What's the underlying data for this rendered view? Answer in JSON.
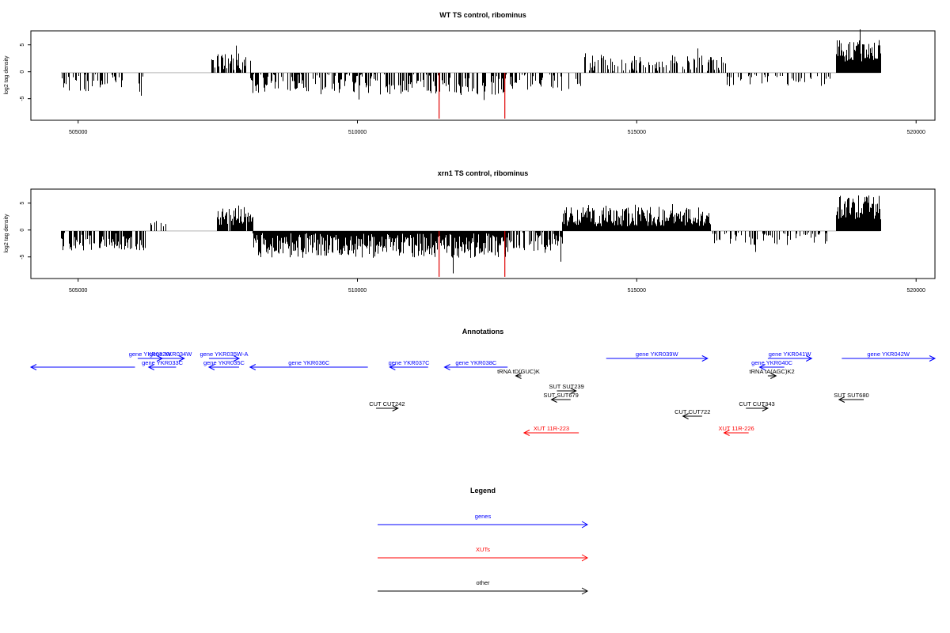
{
  "chart_data": [
    {
      "type": "bar",
      "title": "WT TS control, ribominus",
      "xlabel": "",
      "ylabel": "log2 tag density",
      "xlim": [
        504200,
        520700
      ],
      "ylim": [
        -8.5,
        7.5
      ],
      "xticks": [
        "505000",
        "510000",
        "515000",
        "520000"
      ],
      "yticks": [
        "-5",
        "0",
        "5"
      ],
      "highlight_positions": [
        511650,
        512850
      ],
      "highlight_value": -8.2,
      "highlight_color": "#e00000",
      "bar_color": "#000000",
      "segments": [
        {
          "start": 504750,
          "end": 506300,
          "level": -1.8,
          "amp": 1.6,
          "density": 0.35
        },
        {
          "start": 506600,
          "end": 506700,
          "level": 2.2,
          "amp": 0.3,
          "density": 0.2
        },
        {
          "start": 507500,
          "end": 508200,
          "level": 2.0,
          "amp": 1.5,
          "density": 0.5
        },
        {
          "start": 508200,
          "end": 510400,
          "level": -1.8,
          "amp": 1.8,
          "density": 0.55
        },
        {
          "start": 510400,
          "end": 512900,
          "level": -2.0,
          "amp": 2.0,
          "density": 0.5
        },
        {
          "start": 512900,
          "end": 514300,
          "level": -1.5,
          "amp": 1.5,
          "density": 0.3
        },
        {
          "start": 514300,
          "end": 516900,
          "level": 1.7,
          "amp": 1.4,
          "density": 0.45
        },
        {
          "start": 516900,
          "end": 518800,
          "level": -1.0,
          "amp": 1.5,
          "density": 0.25
        },
        {
          "start": 518900,
          "end": 519700,
          "level": 4.0,
          "amp": 2.0,
          "density": 1.0
        }
      ]
    },
    {
      "type": "bar",
      "title": "xrn1 TS control, ribominus",
      "xlabel": "",
      "ylabel": "log2 tag density",
      "xlim": [
        504200,
        520700
      ],
      "ylim": [
        -8.5,
        7.5
      ],
      "xticks": [
        "505000",
        "510000",
        "515000",
        "520000"
      ],
      "yticks": [
        "-5",
        "0",
        "5"
      ],
      "highlight_positions": [
        511650,
        512850
      ],
      "highlight_value": -8.2,
      "highlight_color": "#e00000",
      "bar_color": "#000000",
      "segments": [
        {
          "start": 504750,
          "end": 506300,
          "level": -1.9,
          "amp": 1.6,
          "density": 0.55
        },
        {
          "start": 506300,
          "end": 506900,
          "level": 1.2,
          "amp": 0.6,
          "density": 0.1
        },
        {
          "start": 507600,
          "end": 508250,
          "level": 2.5,
          "amp": 1.6,
          "density": 0.9
        },
        {
          "start": 508250,
          "end": 512900,
          "level": -2.6,
          "amp": 2.2,
          "density": 1.0
        },
        {
          "start": 512900,
          "end": 513900,
          "level": -1.8,
          "amp": 1.8,
          "density": 0.6
        },
        {
          "start": 513900,
          "end": 516600,
          "level": 2.6,
          "amp": 1.8,
          "density": 1.0
        },
        {
          "start": 516600,
          "end": 518800,
          "level": -1.0,
          "amp": 1.5,
          "density": 0.4
        },
        {
          "start": 518900,
          "end": 519700,
          "level": 4.2,
          "amp": 2.2,
          "density": 1.0
        }
      ]
    }
  ],
  "annotations": {
    "title": "Annotations",
    "features": [
      {
        "label": "",
        "start": 504200,
        "end": 506100,
        "row": 1,
        "dir": "left",
        "type": "gene"
      },
      {
        "label": "gene YKR032W",
        "start": 506150,
        "end": 506600,
        "row": 0,
        "dir": "right",
        "type": "gene"
      },
      {
        "label": "gene YKR034W",
        "start": 506500,
        "end": 507000,
        "row": 0,
        "dir": "right",
        "type": "gene"
      },
      {
        "label": "gene YKR033C",
        "start": 506350,
        "end": 506850,
        "row": 1,
        "dir": "left",
        "type": "gene"
      },
      {
        "label": "gene YKR035W-A",
        "start": 507450,
        "end": 508000,
        "row": 0,
        "dir": "right",
        "type": "gene"
      },
      {
        "label": "gene YKR035C",
        "start": 507450,
        "end": 508000,
        "row": 1,
        "dir": "left",
        "type": "gene"
      },
      {
        "label": "gene YKR036C",
        "start": 508200,
        "end": 510350,
        "row": 1,
        "dir": "left",
        "type": "gene"
      },
      {
        "label": "gene YKR037C",
        "start": 510750,
        "end": 511450,
        "row": 1,
        "dir": "left",
        "type": "gene"
      },
      {
        "label": "gene YKR038C",
        "start": 511750,
        "end": 512900,
        "row": 1,
        "dir": "left",
        "type": "gene"
      },
      {
        "label": "gene YKR039W",
        "start": 514700,
        "end": 516550,
        "row": 0,
        "dir": "right",
        "type": "gene"
      },
      {
        "label": "gene YKR041W",
        "start": 517650,
        "end": 518450,
        "row": 0,
        "dir": "right",
        "type": "gene"
      },
      {
        "label": "gene YKR040C",
        "start": 517500,
        "end": 517950,
        "row": 1,
        "dir": "left",
        "type": "gene"
      },
      {
        "label": "gene YKR042W",
        "start": 519000,
        "end": 520700,
        "row": 0,
        "dir": "right",
        "type": "gene"
      },
      {
        "label": "tRNA tD(GUC)K",
        "start": 513050,
        "end": 513150,
        "row": 2,
        "dir": "left",
        "type": "other"
      },
      {
        "label": "tRNA tA(AGC)K2",
        "start": 517650,
        "end": 517800,
        "row": 2,
        "dir": "right",
        "type": "other"
      },
      {
        "label": "SUT SUT239",
        "start": 513800,
        "end": 514150,
        "row": 3,
        "dir": "right",
        "type": "other"
      },
      {
        "label": "SUT SUT679",
        "start": 513700,
        "end": 514050,
        "row": 4,
        "dir": "left",
        "type": "other"
      },
      {
        "label": "SUT SUT680",
        "start": 518950,
        "end": 519400,
        "row": 4,
        "dir": "left",
        "type": "other"
      },
      {
        "label": "CUT CUT242",
        "start": 510500,
        "end": 510900,
        "row": 5,
        "dir": "right",
        "type": "other"
      },
      {
        "label": "CUT CUT343",
        "start": 517250,
        "end": 517650,
        "row": 5,
        "dir": "right",
        "type": "other"
      },
      {
        "label": "CUT CUT722",
        "start": 516100,
        "end": 516450,
        "row": 6,
        "dir": "left",
        "type": "other"
      },
      {
        "label": "XUT 11R-223",
        "start": 513200,
        "end": 514200,
        "row": 7,
        "dir": "left",
        "type": "xut"
      },
      {
        "label": "XUT 11R-226",
        "start": 516850,
        "end": 517300,
        "row": 7,
        "dir": "left",
        "type": "xut"
      }
    ]
  },
  "legend": {
    "title": "Legend",
    "items": [
      {
        "label": "genes",
        "color": "#0000ff"
      },
      {
        "label": "XUTs",
        "color": "#ff0000"
      },
      {
        "label": "other",
        "color": "#000000"
      }
    ]
  },
  "colors": {
    "gene": "#0000ff",
    "xut": "#ff0000",
    "other": "#000000"
  }
}
